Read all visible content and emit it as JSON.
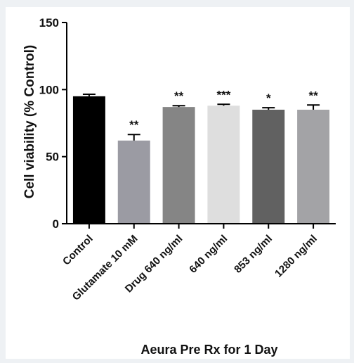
{
  "chart_data": {
    "type": "bar",
    "categories": [
      "Control",
      "Glutamate 10 mM",
      "Drug 640 ng/ml",
      "640 ng/ml",
      "853 ng/ml",
      "1280 ng/ml"
    ],
    "values": [
      95,
      62,
      87,
      88,
      85,
      85
    ],
    "errors": [
      1.5,
      4.5,
      1.0,
      1.0,
      1.5,
      3.5
    ],
    "significance": [
      "",
      "**",
      "**",
      "***",
      "*",
      "**"
    ],
    "colors": [
      "#000000",
      "#9b9ba3",
      "#858585",
      "#dedede",
      "#616161",
      "#a3a3a6"
    ],
    "title": "",
    "xlabel": "Aeura Pre Rx for 1 Day",
    "ylabel": "Cell viability (% Control)",
    "ylim": [
      0,
      150
    ],
    "yticks": [
      "0",
      "50",
      "100",
      "150"
    ],
    "grid": false,
    "legend": false
  }
}
